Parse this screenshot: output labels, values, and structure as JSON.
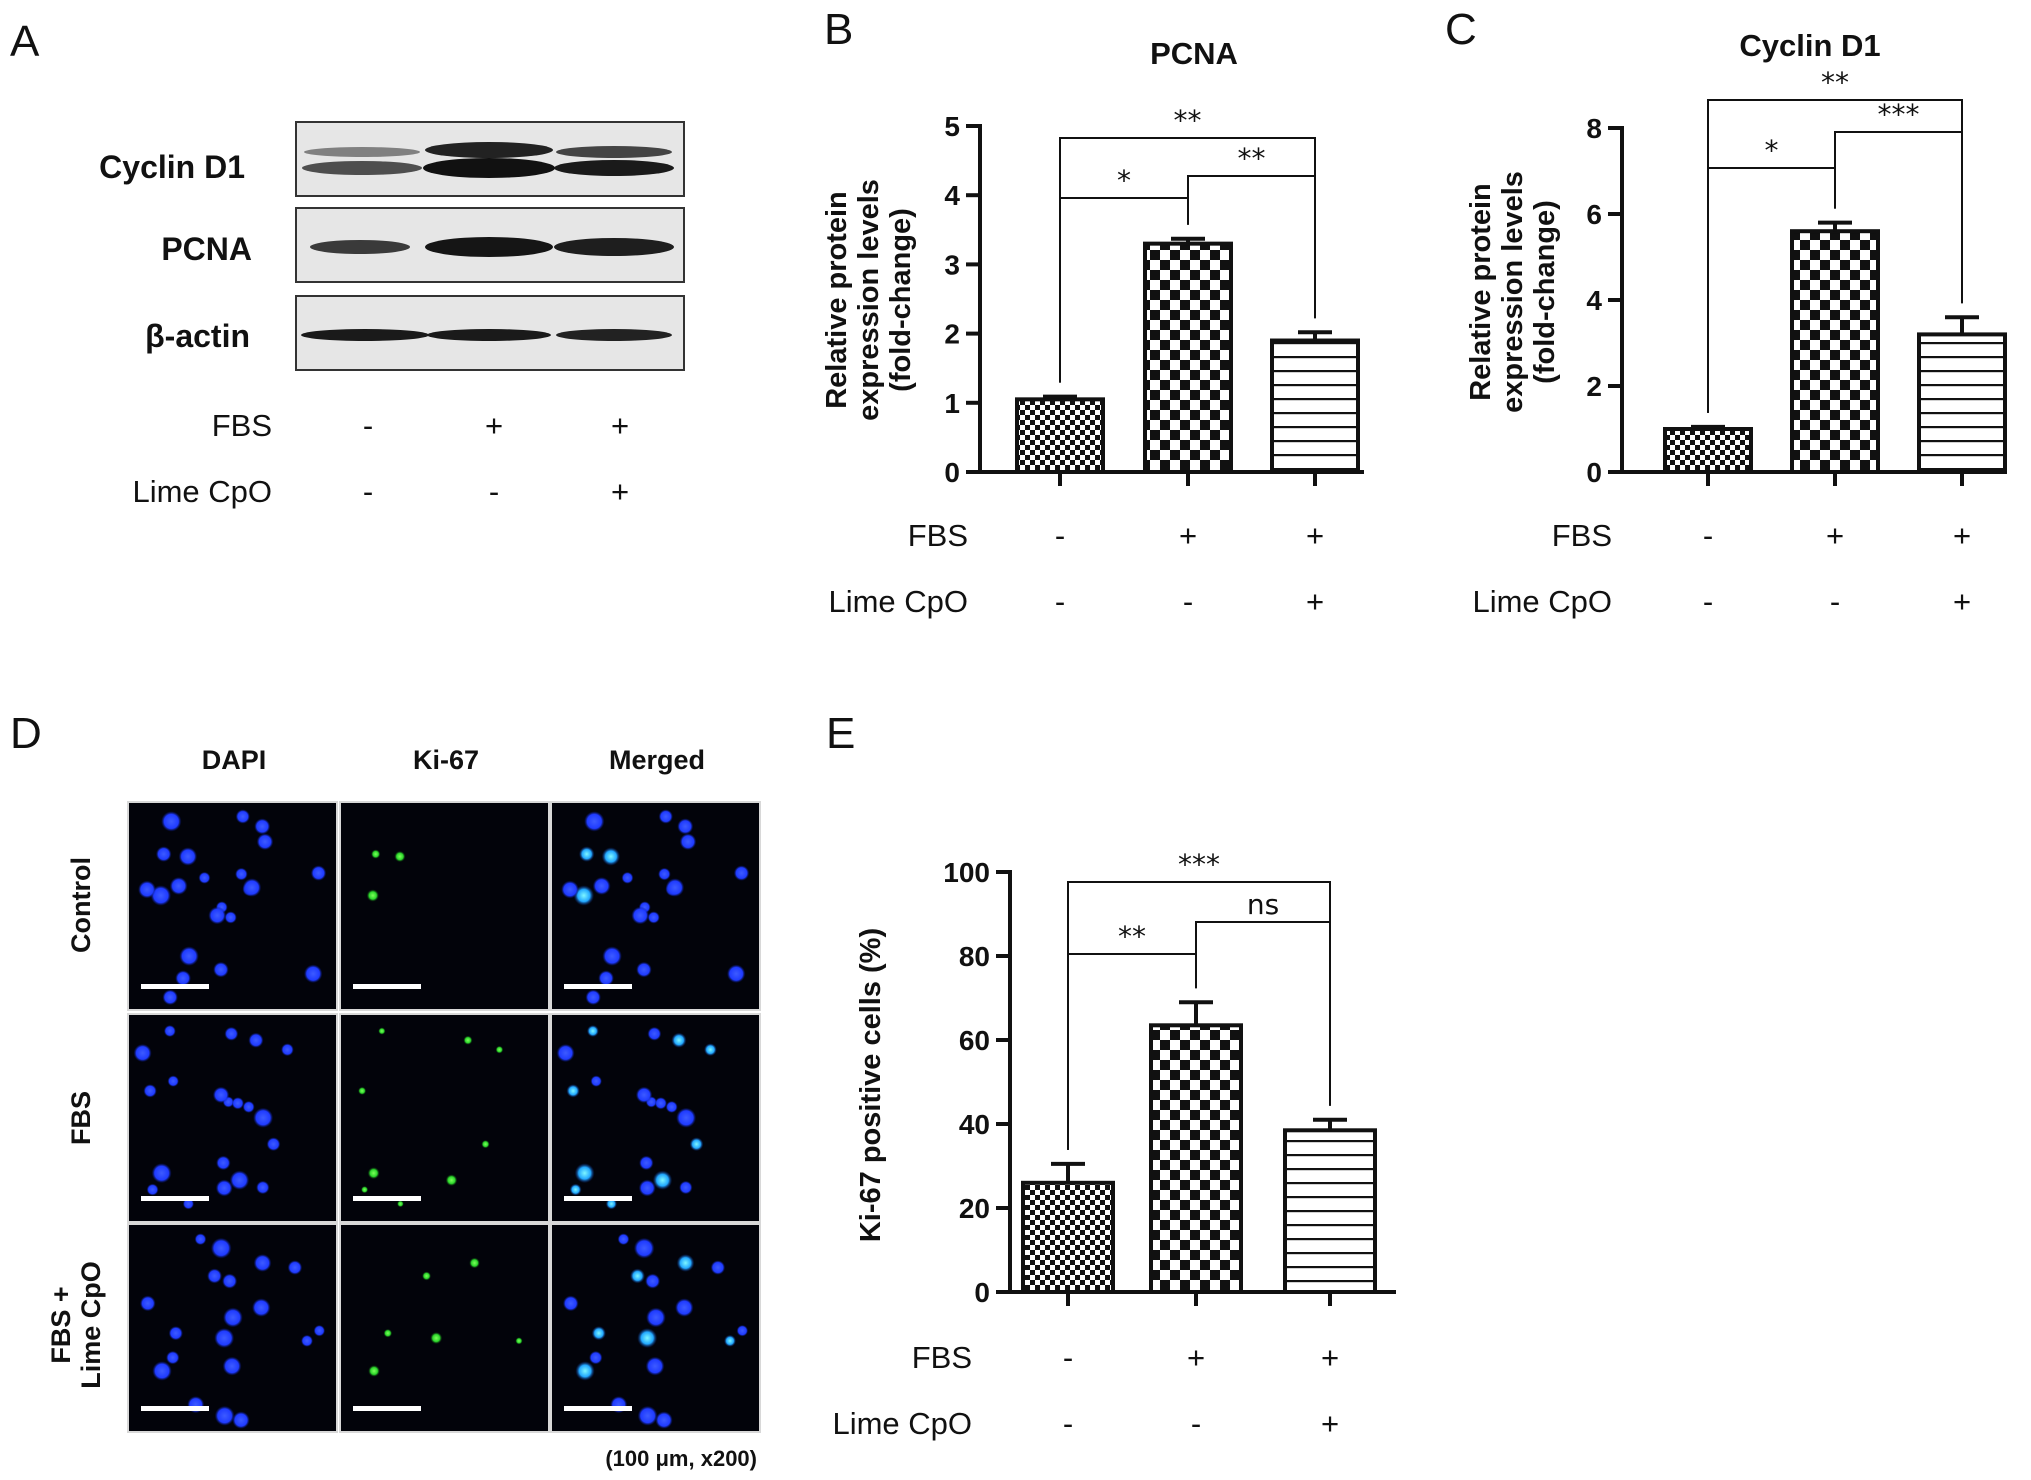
{
  "figure": {
    "panel_letters": [
      "A",
      "B",
      "C",
      "D",
      "E"
    ],
    "conditions": {
      "row1_label": "FBS",
      "row2_label": "Lime CpO",
      "row1_marks": [
        "-",
        "+",
        "+"
      ],
      "row2_marks": [
        "-",
        "-",
        "+"
      ]
    },
    "western_blot": {
      "bands": [
        {
          "label": "Cyclin D1"
        },
        {
          "label": "PCNA"
        },
        {
          "label": "β-actin"
        }
      ]
    },
    "microscopy": {
      "columns": [
        "DAPI",
        "Ki-67",
        "Merged"
      ],
      "rows": [
        "Control",
        "FBS",
        "FBS +",
        "Lime CpO"
      ],
      "scale_note": "(100 μm, x200)"
    }
  },
  "chart_data": [
    {
      "type": "bar",
      "panel": "B",
      "title": "PCNA",
      "ylabel_lines": [
        "Relative protein",
        "expression levels",
        "(fold-change)"
      ],
      "categories": [
        "Control",
        "FBS",
        "FBS + Lime CpO"
      ],
      "values": [
        1.05,
        3.3,
        1.9
      ],
      "errors": [
        0.04,
        0.07,
        0.12
      ],
      "ylim": [
        0,
        5
      ],
      "yticks": [
        "0",
        "1",
        "2",
        "3",
        "4",
        "5"
      ],
      "patterns": [
        "checker-fine",
        "checker-coarse",
        "horizontal-lines"
      ],
      "significance": [
        {
          "from": 1,
          "to": 2,
          "label": "**"
        },
        {
          "from": 0,
          "to": 1,
          "label": "*"
        },
        {
          "from": 0,
          "to": 2,
          "label": "**"
        }
      ]
    },
    {
      "type": "bar",
      "panel": "C",
      "title": "Cyclin D1",
      "ylabel_lines": [
        "Relative protein",
        "expression levels",
        "(fold-change)"
      ],
      "categories": [
        "Control",
        "FBS",
        "FBS + Lime CpO"
      ],
      "values": [
        1.0,
        5.6,
        3.2
      ],
      "errors": [
        0.05,
        0.2,
        0.4
      ],
      "ylim": [
        0,
        8
      ],
      "yticks": [
        "0",
        "2",
        "4",
        "6",
        "8"
      ],
      "patterns": [
        "checker-fine",
        "checker-coarse",
        "horizontal-lines"
      ],
      "significance": [
        {
          "from": 0,
          "to": 1,
          "label": "*"
        },
        {
          "from": 1,
          "to": 2,
          "label": "***"
        },
        {
          "from": 0,
          "to": 2,
          "label": "**"
        }
      ]
    },
    {
      "type": "bar",
      "panel": "E",
      "ylabel_lines": [
        "Ki-67 positive cells (%)"
      ],
      "categories": [
        "Control",
        "FBS",
        "FBS + Lime CpO"
      ],
      "values": [
        26,
        63.5,
        38.5
      ],
      "errors": [
        4.5,
        5.5,
        2.5
      ],
      "ylim": [
        0,
        100
      ],
      "yticks": [
        "0",
        "20",
        "40",
        "60",
        "80",
        "100"
      ],
      "patterns": [
        "checker-fine",
        "checker-coarse",
        "horizontal-lines"
      ],
      "significance": [
        {
          "from": 0,
          "to": 1,
          "label": "**"
        },
        {
          "from": 1,
          "to": 2,
          "label": "ns"
        },
        {
          "from": 0,
          "to": 2,
          "label": "***"
        }
      ]
    }
  ]
}
